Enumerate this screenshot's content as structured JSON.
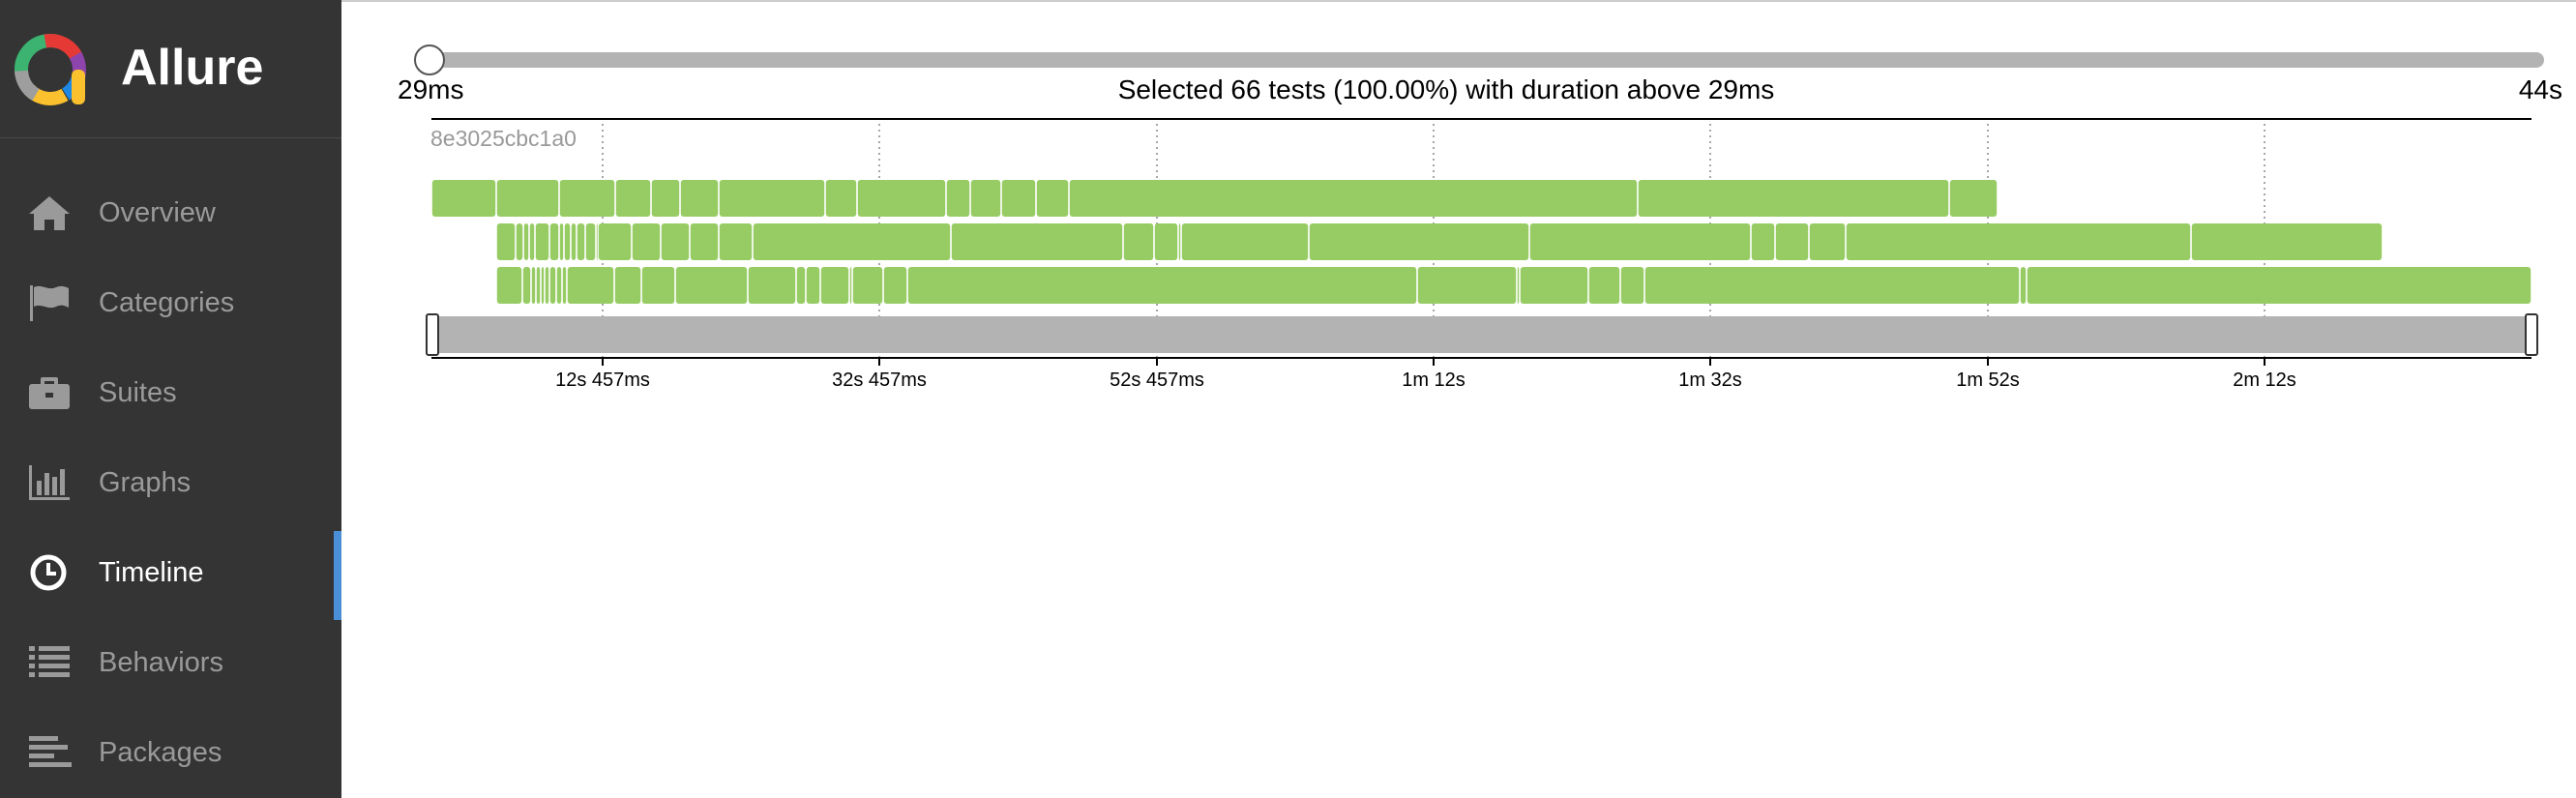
{
  "app": {
    "name": "Allure"
  },
  "sidebar": {
    "items": [
      {
        "label": "Overview",
        "icon": "home-icon",
        "active": false
      },
      {
        "label": "Categories",
        "icon": "flag-icon",
        "active": false
      },
      {
        "label": "Suites",
        "icon": "briefcase-icon",
        "active": false
      },
      {
        "label": "Graphs",
        "icon": "bar-chart-icon",
        "active": false
      },
      {
        "label": "Timeline",
        "icon": "clock-icon",
        "active": true
      },
      {
        "label": "Behaviors",
        "icon": "list-icon",
        "active": false
      },
      {
        "label": "Packages",
        "icon": "align-left-icon",
        "active": false
      }
    ]
  },
  "colors": {
    "sidebar_bg": "#343434",
    "active_indicator": "#4a90d9",
    "passed": "#97cc64",
    "brush": "#b3b3b3"
  },
  "filter": {
    "min_label": "29ms",
    "max_label": "44s",
    "summary": "Selected 66 tests (100.00%) with duration above 29ms",
    "selected_fraction": 1.0
  },
  "timeline": {
    "host": "8e3025cbc1a0",
    "ticks": [
      "12s 457ms",
      "32s 457ms",
      "52s 457ms",
      "1m 12s",
      "1m 32s",
      "1m 52s",
      "2m 12s"
    ]
  }
}
